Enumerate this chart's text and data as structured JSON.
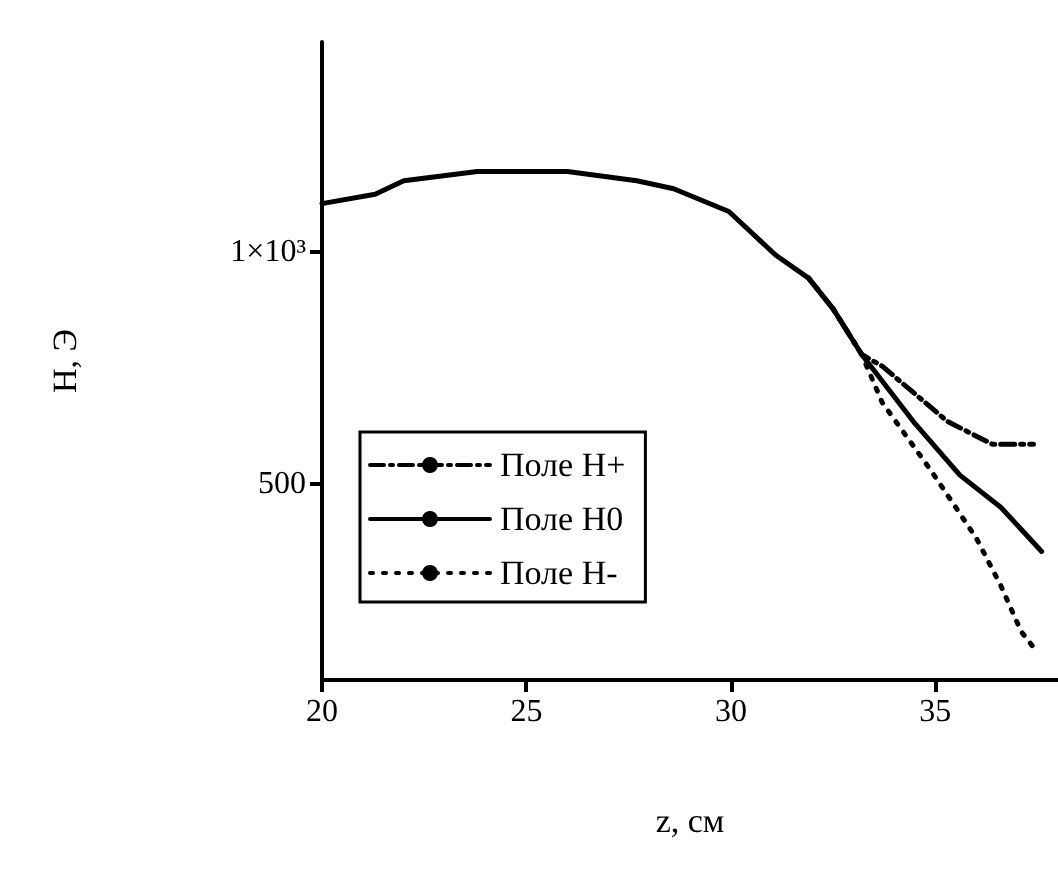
{
  "chart_data": {
    "type": "line",
    "xlabel": "z, см",
    "ylabel": "H, Э",
    "xlim": [
      20,
      38
    ],
    "xticks": [
      20,
      25,
      30,
      35
    ],
    "ylim": [
      80,
      1450
    ],
    "yticks": [
      500,
      {
        "value": 1000,
        "label": "1×10³"
      }
    ],
    "grid": false,
    "legend": "bottom left",
    "marker": "none",
    "series": [
      {
        "name": "Поле H+",
        "color": "#000000",
        "line_style": "dashed",
        "x": [
          31.9,
          32.5,
          33.2,
          33.7,
          35.3,
          36.4,
          37.4
        ],
        "values": [
          943,
          877,
          779,
          754,
          635,
          586,
          586
        ]
      },
      {
        "name": "Поле H0",
        "color": "#000000",
        "line_style": "solid",
        "x": [
          20,
          21.3,
          22,
          23.8,
          26,
          27.7,
          28.6,
          29.95,
          31.1,
          31.9,
          32.5,
          33.2,
          34.5,
          35.6,
          36.6,
          37.6
        ],
        "values": [
          1103,
          1123,
          1152,
          1172,
          1172,
          1152,
          1135,
          1086,
          992,
          943,
          877,
          779,
          631,
          520,
          451,
          356
        ]
      },
      {
        "name": "Поле H-",
        "color": "#000000",
        "line_style": "dotted",
        "x": [
          31.9,
          32.5,
          33.2,
          33.7,
          34.9,
          36,
          36.6,
          37.1,
          37.5
        ],
        "values": [
          943,
          877,
          779,
          676,
          529,
          385,
          283,
          184,
          139
        ]
      }
    ]
  }
}
